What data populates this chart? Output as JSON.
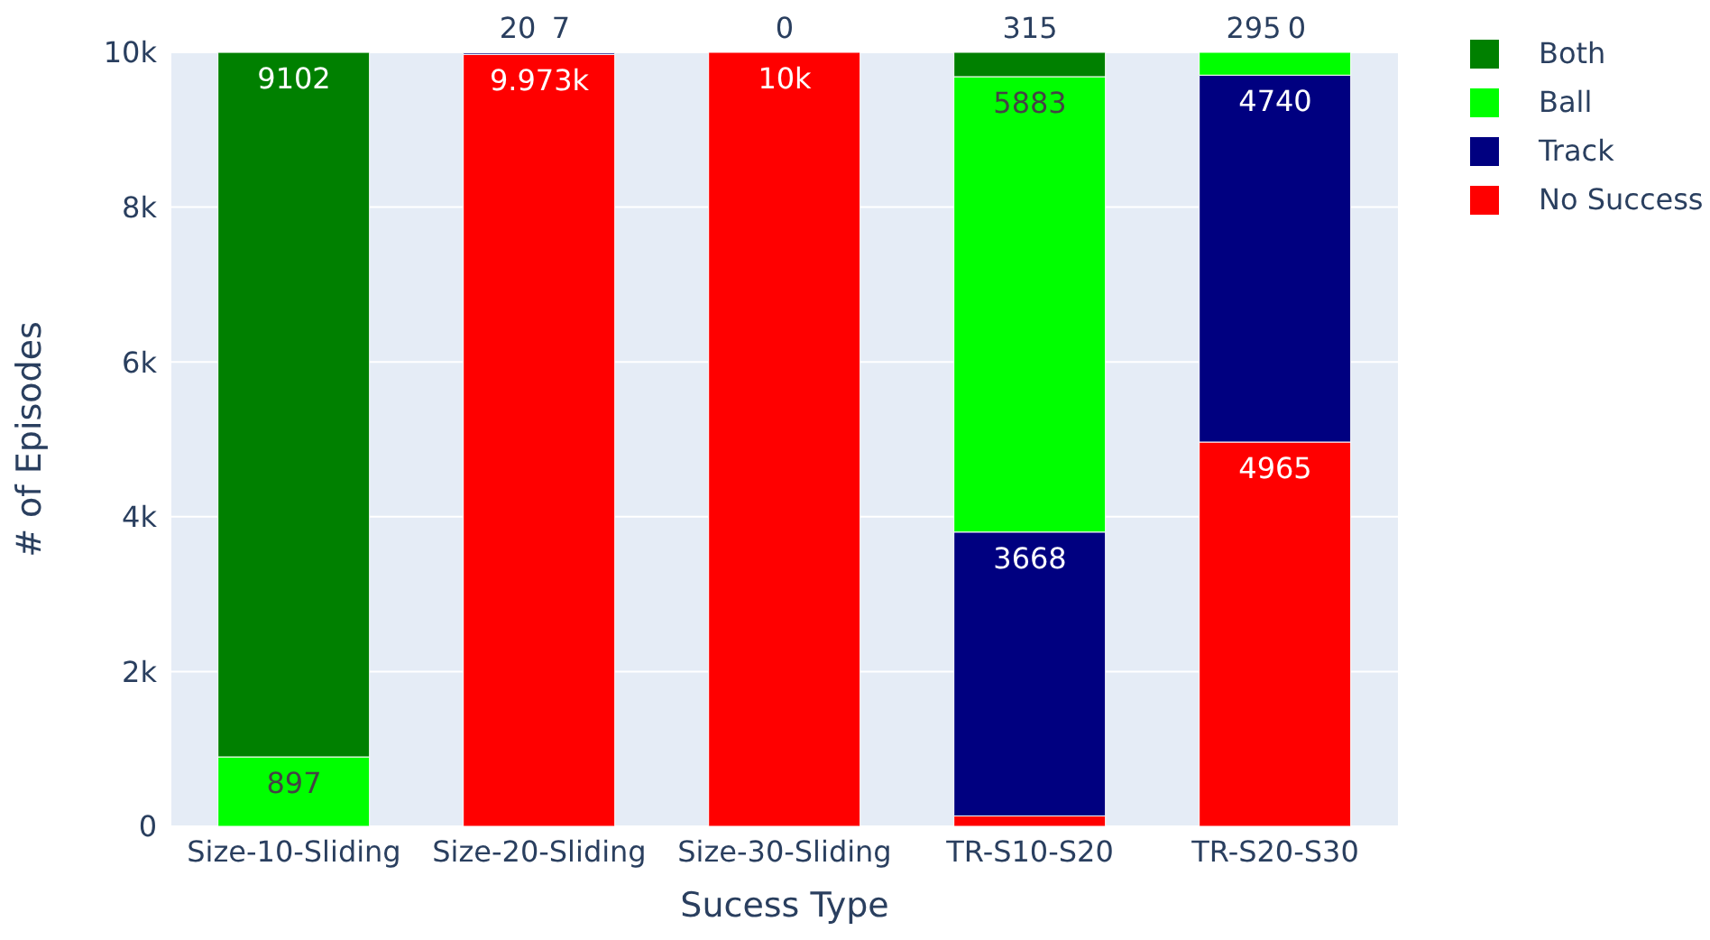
{
  "chart_data": {
    "type": "bar",
    "stacked": true,
    "xlabel": "Sucess Type",
    "ylabel": "# of Episodes",
    "categories": [
      "Size-10-Sliding",
      "Size-20-Sliding",
      "Size-30-Sliding",
      "TR-S10-S20",
      "TR-S20-S30"
    ],
    "series": [
      {
        "name": "No Success",
        "color": "#ff0000",
        "values": [
          null,
          9973,
          10000,
          134,
          4965
        ],
        "value_labels": [
          null,
          "9.973k",
          "10k",
          null,
          "4965"
        ]
      },
      {
        "name": "Track",
        "color": "#000080",
        "values": [
          null,
          20,
          null,
          3668,
          4740
        ],
        "value_labels": [
          null,
          "20",
          null,
          "3668",
          "4740"
        ]
      },
      {
        "name": "Ball",
        "color": "#00ff00",
        "values": [
          897,
          null,
          null,
          5883,
          295
        ],
        "value_labels": [
          "897",
          null,
          null,
          "5883",
          "295"
        ]
      },
      {
        "name": "Both",
        "color": "#008000",
        "values": [
          9102,
          7,
          0,
          315,
          0
        ],
        "value_labels": [
          "9102",
          "7",
          "0",
          "315",
          "0"
        ]
      }
    ],
    "ylim": [
      0,
      10000
    ],
    "yticks": [
      0,
      {
        "value": 2000,
        "label": "2k"
      },
      {
        "value": 4000,
        "label": "4k"
      },
      {
        "value": 6000,
        "label": "6k"
      },
      {
        "value": 8000,
        "label": "8k"
      },
      {
        "value": 10000,
        "label": "10k"
      }
    ],
    "grid": "y",
    "legend": "top right"
  }
}
